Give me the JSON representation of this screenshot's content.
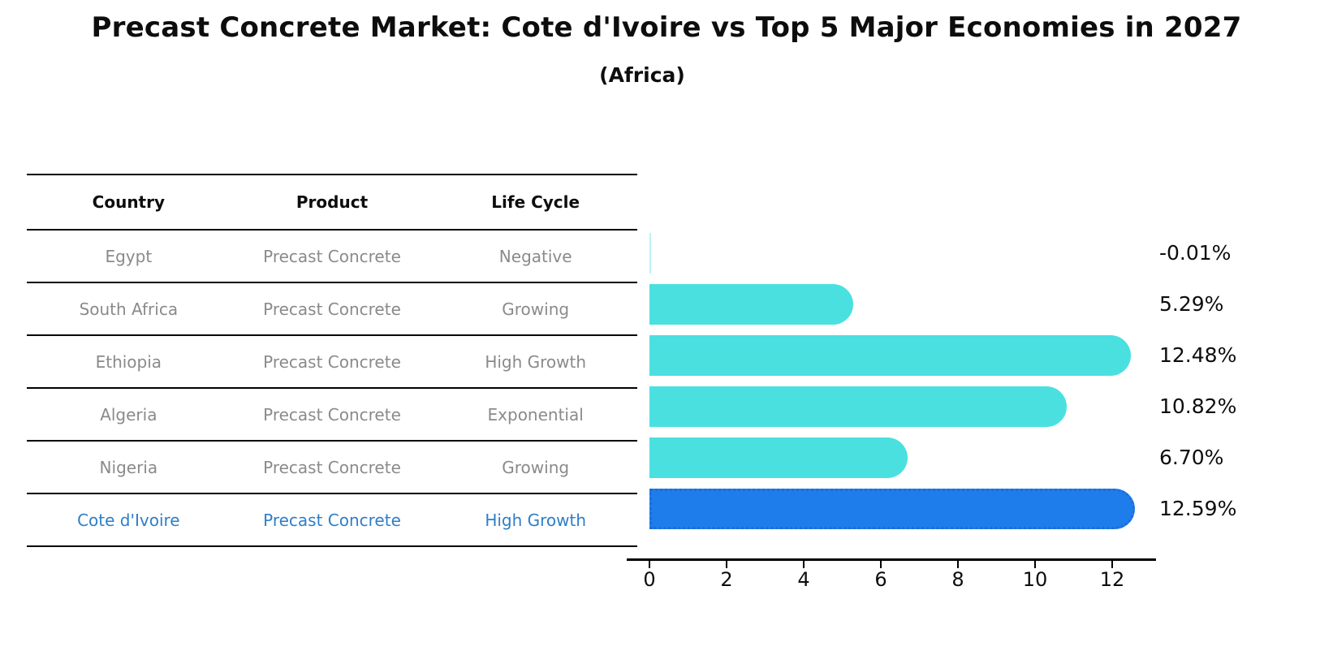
{
  "title": "Precast Concrete Market: Cote d'Ivoire vs Top 5 Major Economies in 2027",
  "subtitle": "(Africa)",
  "table": {
    "headers": [
      "Country",
      "Product",
      "Life Cycle"
    ],
    "rows": [
      {
        "country": "Egypt",
        "product": "Precast Concrete",
        "life_cycle": "Negative",
        "highlight": false
      },
      {
        "country": "South Africa",
        "product": "Precast Concrete",
        "life_cycle": "Growing",
        "highlight": false
      },
      {
        "country": "Ethiopia",
        "product": "Precast Concrete",
        "life_cycle": "High Growth",
        "highlight": false
      },
      {
        "country": "Algeria",
        "product": "Precast Concrete",
        "life_cycle": "Exponential",
        "highlight": false
      },
      {
        "country": "Nigeria",
        "product": "Precast Concrete",
        "life_cycle": "Growing",
        "highlight": false
      },
      {
        "country": "Cote d'Ivoire",
        "product": "Precast Concrete",
        "life_cycle": "High Growth",
        "highlight": true
      }
    ]
  },
  "chart_data": {
    "type": "bar",
    "orientation": "horizontal",
    "title": "Precast Concrete Market: Cote d'Ivoire vs Top 5 Major Economies in 2027 (Africa)",
    "categories": [
      "Egypt",
      "South Africa",
      "Ethiopia",
      "Algeria",
      "Nigeria",
      "Cote d'Ivoire"
    ],
    "values": [
      -0.01,
      5.29,
      12.48,
      10.82,
      6.7,
      12.59
    ],
    "value_labels": [
      "-0.01%",
      "5.29%",
      "12.48%",
      "10.82%",
      "6.70%",
      "12.59%"
    ],
    "highlight_index": 5,
    "xticks": [
      0,
      2,
      4,
      6,
      8,
      10,
      12
    ],
    "xlim": [
      -0.6,
      13.2
    ],
    "grid": false,
    "legend": "none"
  },
  "colors": {
    "bar_default": "#4ae0e0",
    "bar_tiny": "#a8efed",
    "bar_highlight": "#1f7deb",
    "bar_highlight_border": "#1a6fd4",
    "highlight_text": "#2e7ec8",
    "row_text": "#8a8a8a",
    "axis_text": "#0d0d0d"
  }
}
